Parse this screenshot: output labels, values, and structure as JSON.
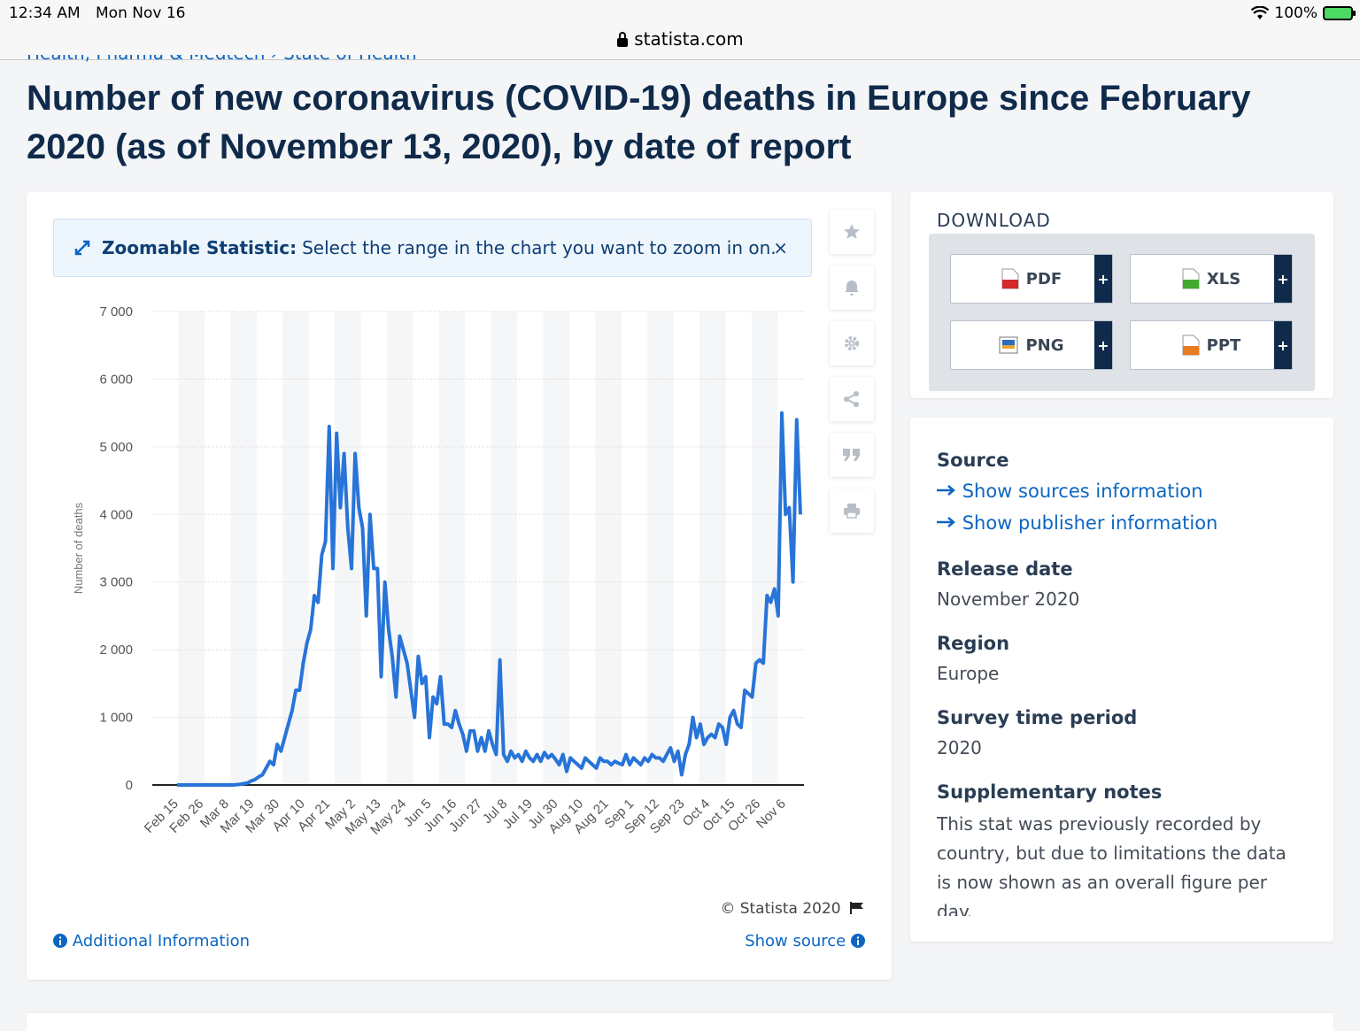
{
  "status_bar": {
    "time": "12:34 AM",
    "date": "Mon Nov 16",
    "url": "statista.com",
    "battery": "100%"
  },
  "breadcrumb": "Health, Pharma & Medtech › State of Health",
  "page_title": "Number of new coronavirus (COVID-19) deaths in Europe since February 2020 (as of November 13, 2020), by date of report",
  "zoom_banner": {
    "label": "Zoomable Statistic:",
    "text": "Select the range in the chart you want to zoom in on.",
    "close": "×"
  },
  "tools": [
    "star-icon",
    "bell-icon",
    "gear-icon",
    "share-icon",
    "quote-icon",
    "print-icon"
  ],
  "chart_data": {
    "type": "line",
    "ylabel": "Number of deaths",
    "ylim": [
      0,
      7000
    ],
    "yticks": [
      "0",
      "1 000",
      "2 000",
      "3 000",
      "4 000",
      "5 000",
      "6 000",
      "7 000"
    ],
    "xticks": [
      "Feb 15",
      "Feb 26",
      "Mar 8",
      "Mar 19",
      "Mar 30",
      "Apr 10",
      "Apr 21",
      "May 2",
      "May 13",
      "May 24",
      "Jun 5",
      "Jun 16",
      "Jun 27",
      "Jul 8",
      "Jul 19",
      "Jul 30",
      "Aug 10",
      "Aug 21",
      "Sep 1",
      "Sep 12",
      "Sep 23",
      "Oct 4",
      "Oct 15",
      "Oct 26",
      "Nov 6"
    ],
    "series": [
      {
        "color": "#2874d8",
        "values": [
          0,
          0,
          0,
          0,
          0,
          0,
          0,
          0,
          0,
          0,
          0,
          0,
          0,
          0,
          0,
          0,
          5,
          10,
          20,
          30,
          60,
          80,
          120,
          150,
          250,
          350,
          300,
          600,
          500,
          700,
          900,
          1100,
          1400,
          1400,
          1800,
          2100,
          2300,
          2800,
          2700,
          3400,
          3600,
          5300,
          3200,
          5200,
          4100,
          4900,
          3800,
          3200,
          4900,
          4100,
          3800,
          2500,
          4000,
          3200,
          3200,
          1600,
          3000,
          2300,
          1900,
          1300,
          2200,
          2000,
          1800,
          1400,
          1000,
          1900,
          1500,
          1600,
          700,
          1300,
          1200,
          1600,
          900,
          900,
          850,
          1100,
          900,
          750,
          500,
          800,
          800,
          500,
          700,
          500,
          800,
          600,
          450,
          1850,
          450,
          350,
          500,
          400,
          450,
          350,
          500,
          400,
          350,
          450,
          350,
          480,
          400,
          450,
          380,
          300,
          450,
          200,
          400,
          350,
          300,
          250,
          400,
          350,
          300,
          250,
          400,
          350,
          350,
          300,
          350,
          320,
          300,
          450,
          300,
          400,
          350,
          300,
          400,
          350,
          450,
          400,
          400,
          350,
          450,
          550,
          350,
          500,
          150,
          450,
          600,
          1000,
          700,
          900,
          600,
          700,
          750,
          700,
          900,
          850,
          600,
          1000,
          1100,
          900,
          850,
          1400,
          1350,
          1300,
          1800,
          1850,
          1800,
          2800,
          2700,
          2900,
          2500,
          5500,
          4000,
          4100,
          3000,
          5400,
          4000
        ]
      }
    ]
  },
  "copyright": "© Statista 2020",
  "additional_info": "Additional Information",
  "show_source": "Show source",
  "download": {
    "title": "DOWNLOAD",
    "buttons": [
      {
        "label": "PDF",
        "icon": "pdf-file-icon",
        "color": "#d42a2a"
      },
      {
        "label": "XLS",
        "icon": "xls-file-icon",
        "color": "#43a82f"
      },
      {
        "label": "PNG",
        "icon": "png-file-icon",
        "color": "#2c6bbf"
      },
      {
        "label": "PPT",
        "icon": "ppt-file-icon",
        "color": "#e67c1f"
      }
    ],
    "plus": "+"
  },
  "meta": {
    "source_heading": "Source",
    "sources_link": "Show sources information",
    "publisher_link": "Show publisher information",
    "release_heading": "Release date",
    "release_value": "November 2020",
    "region_heading": "Region",
    "region_value": "Europe",
    "survey_heading": "Survey time period",
    "survey_value": "2020",
    "notes_heading": "Supplementary notes",
    "notes_value": "This stat was previously recorded by country, but due to limitations the data is now shown as an overall figure per day."
  }
}
